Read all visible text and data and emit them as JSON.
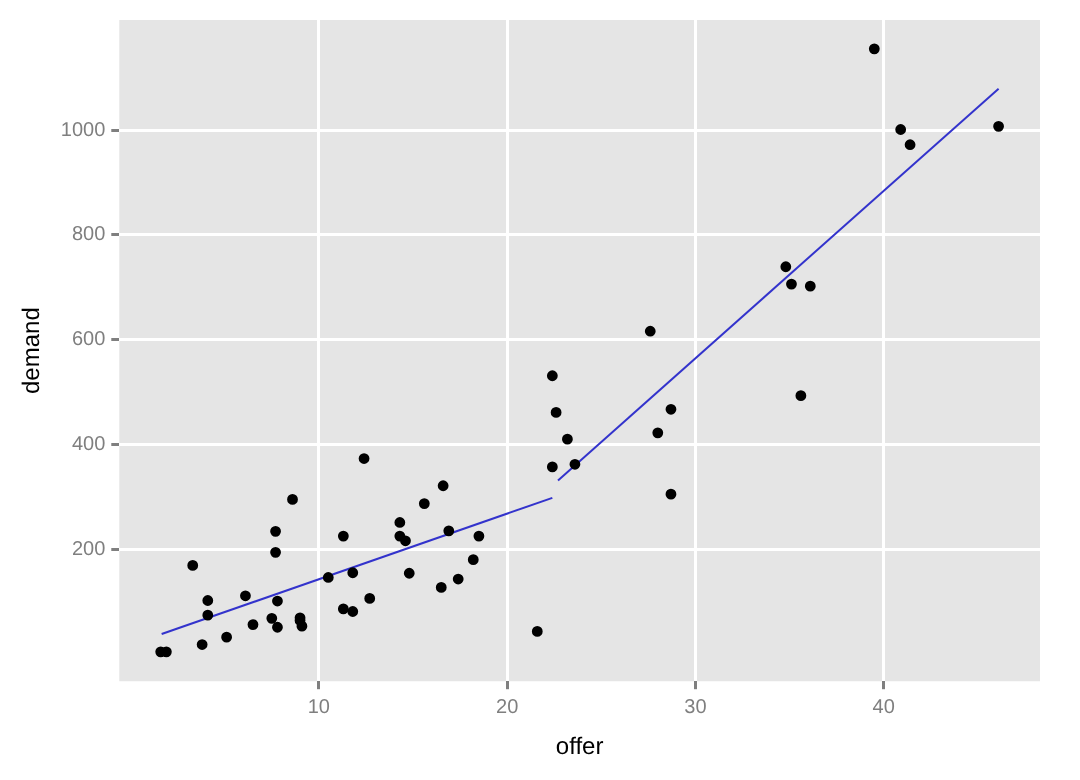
{
  "chart_data": {
    "type": "scatter",
    "xlabel": "offer",
    "ylabel": "demand",
    "xlim": [
      -0.6,
      48.3
    ],
    "ylim": [
      -52,
      1210
    ],
    "xticks": [
      10,
      20,
      30,
      40
    ],
    "yticks": [
      200,
      400,
      600,
      800,
      1000
    ],
    "grid": true,
    "legend": false,
    "marker": "circle",
    "series": [
      {
        "type": "scatter",
        "color": "#000000",
        "x": [
          1.6,
          1.9,
          3.3,
          4.1,
          4.1,
          3.8,
          5.1,
          6.1,
          6.5,
          7.5,
          7.8,
          7.8,
          7.7,
          7.7,
          8.6,
          9.0,
          9.0,
          9.1,
          10.5,
          11.3,
          11.3,
          11.8,
          11.8,
          12.4,
          12.7,
          14.3,
          14.3,
          14.6,
          14.8,
          15.6,
          16.6,
          16.9,
          16.5,
          17.4,
          18.2,
          18.5,
          21.6,
          22.4,
          22.6,
          23.2,
          22.4,
          23.6,
          27.6,
          28.7,
          28.0,
          28.7,
          39.5,
          40.9,
          41.4,
          46.1,
          34.8,
          35.1,
          36.1,
          35.6
        ],
        "values": [
          4,
          4,
          169,
          102,
          74,
          18,
          32,
          111,
          56,
          68,
          51,
          101,
          194,
          234,
          295,
          69,
          64,
          53,
          146,
          225,
          86,
          81,
          155,
          373,
          106,
          251,
          225,
          216,
          154,
          287,
          321,
          235,
          127,
          143,
          180,
          225,
          43,
          531,
          461,
          410,
          357,
          362,
          616,
          467,
          422,
          305,
          1155,
          1001,
          972,
          1007,
          739,
          706,
          702,
          493
        ]
      },
      {
        "type": "line",
        "color": "#3333cc",
        "marker": "none",
        "x": [
          1.65,
          22.4
        ],
        "values": [
          38,
          298
        ]
      },
      {
        "type": "line",
        "color": "#3333cc",
        "marker": "none",
        "x": [
          22.7,
          46.1
        ],
        "values": [
          331,
          1079
        ]
      }
    ]
  }
}
